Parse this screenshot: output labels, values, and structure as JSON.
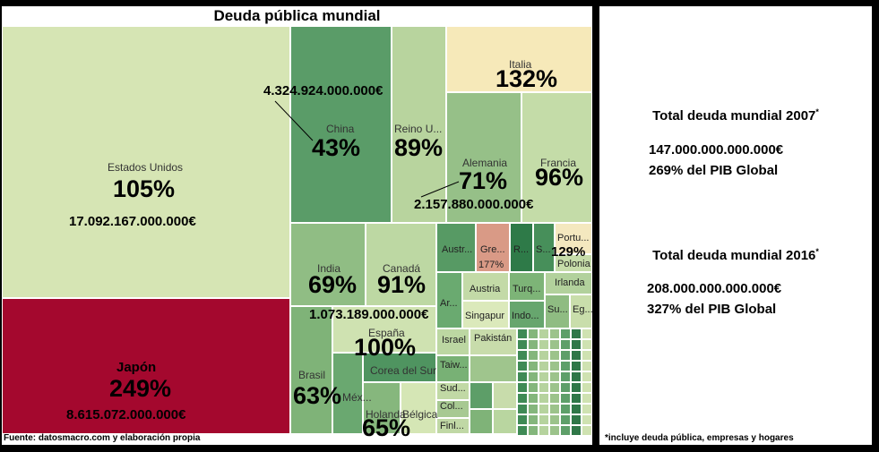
{
  "chart_data": {
    "type": "treemap",
    "title": "Deuda pública mundial",
    "metric": "Deuda pública (% del PIB)",
    "cells": [
      {
        "name": "Estados Unidos",
        "percent": "105%",
        "amount": "17.092.167.000.000€",
        "color": "#d6e5b4"
      },
      {
        "name": "Japón",
        "percent": "249%",
        "amount": "8.615.072.000.000€",
        "color": "#a4082e"
      },
      {
        "name": "China",
        "percent": "43%",
        "amount": "4.324.924.000.000€",
        "color": "#5a9c68"
      },
      {
        "name": "Reino U...",
        "percent": "89%",
        "color": "#b8d49e"
      },
      {
        "name": "Italia",
        "percent": "132%",
        "color": "#f6e9b9"
      },
      {
        "name": "Alemania",
        "percent": "71%",
        "amount": "2.157.880.000.000€",
        "color": "#96c088"
      },
      {
        "name": "Francia",
        "percent": "96%",
        "color": "#c4dca8"
      },
      {
        "name": "India",
        "percent": "69%",
        "color": "#90bd84"
      },
      {
        "name": "Canadá",
        "percent": "91%",
        "color": "#bdd8a3"
      },
      {
        "name": "España",
        "percent": "100%",
        "amount": "1.073.189.000.000€",
        "color": "#cfe2b1"
      },
      {
        "name": "Brasil",
        "percent": "63%",
        "color": "#7fb378"
      },
      {
        "name": "Méx...",
        "color": "#6aa870"
      },
      {
        "name": "Corea del Sur",
        "color": "#4f9460"
      },
      {
        "name": "Holanda",
        "percent": "65%",
        "color": "#86b77d"
      },
      {
        "name": "Bélgica",
        "color": "#d5e6b5"
      },
      {
        "name": "Australia",
        "color": "#579a64"
      },
      {
        "name": "Grecia",
        "percent": "177%",
        "color": "#d99a86"
      },
      {
        "name": "Rusia",
        "color": "#2e7a48"
      },
      {
        "name": "Suiza",
        "color": "#478f5a"
      },
      {
        "name": "Portugal",
        "percent": "129%",
        "color": "#f4e8bf"
      },
      {
        "name": "Polonia",
        "color": "#c6dca9"
      },
      {
        "name": "Argentina",
        "color": "#6aaa70"
      },
      {
        "name": "Austria",
        "color": "#c3daa7"
      },
      {
        "name": "Turquía",
        "color": "#7db477"
      },
      {
        "name": "Irlanda",
        "color": "#b2d19c"
      },
      {
        "name": "Singapur",
        "color": "#dbe9bb"
      },
      {
        "name": "Indonesia",
        "color": "#67a66e"
      },
      {
        "name": "Suecia",
        "color": "#8fbc82"
      },
      {
        "name": "Egipto",
        "color": "#c9deab"
      },
      {
        "name": "Israel",
        "color": "#bcd7a2"
      },
      {
        "name": "Pakistán",
        "color": "#c8dcab"
      },
      {
        "name": "Taiwán",
        "color": "#78b175"
      },
      {
        "name": "Sudáfrica",
        "color": "#c1d9a5"
      },
      {
        "name": "Colombia",
        "color": "#a7c992"
      },
      {
        "name": "Finlandia",
        "color": "#c0d8a5"
      }
    ],
    "headline_labels": [
      "4.324.924.000.000€",
      "2.157.880.000.000€",
      "1.073.189.000.000€"
    ]
  },
  "source": "Fuente: datosmacro.com y elaboración propia",
  "totals": {
    "y2007": {
      "heading": "Total deuda mundial 2007",
      "mark": "*",
      "amount": "147.000.000.000.000€",
      "pct": "269% del PIB Global"
    },
    "y2016": {
      "heading": "Total deuda mundial 2016",
      "mark": "*",
      "amount": "208.000.000.000.000€",
      "pct": "327% del PIB Global"
    },
    "footnote": "*incluye deuda pública, empresas y hogares"
  }
}
